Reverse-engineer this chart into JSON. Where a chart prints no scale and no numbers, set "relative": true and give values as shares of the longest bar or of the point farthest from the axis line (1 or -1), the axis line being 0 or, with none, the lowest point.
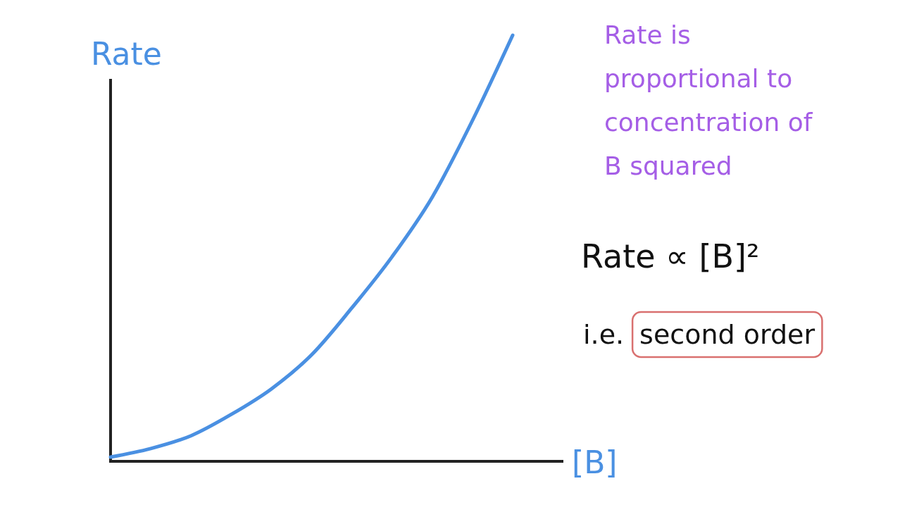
{
  "chart_data": {
    "type": "line",
    "relative": true,
    "xlabel": "[B]",
    "ylabel": "Rate",
    "categories": [
      null,
      null,
      null,
      null,
      null,
      null,
      null,
      null,
      null,
      null,
      null
    ],
    "series": [
      {
        "color": "#4a90e2",
        "values": [
          0.01,
          0.03,
          0.06,
          0.11,
          0.17,
          0.25,
          0.36,
          0.48,
          0.62,
          0.8,
          1
        ]
      }
    ],
    "annotations": [
      "Rate is proportional to concentration of B squared",
      "Rate ∝ [B]²",
      "i.e. second order"
    ],
    "grid": false,
    "marker": "none",
    "line_style": "solid"
  }
}
